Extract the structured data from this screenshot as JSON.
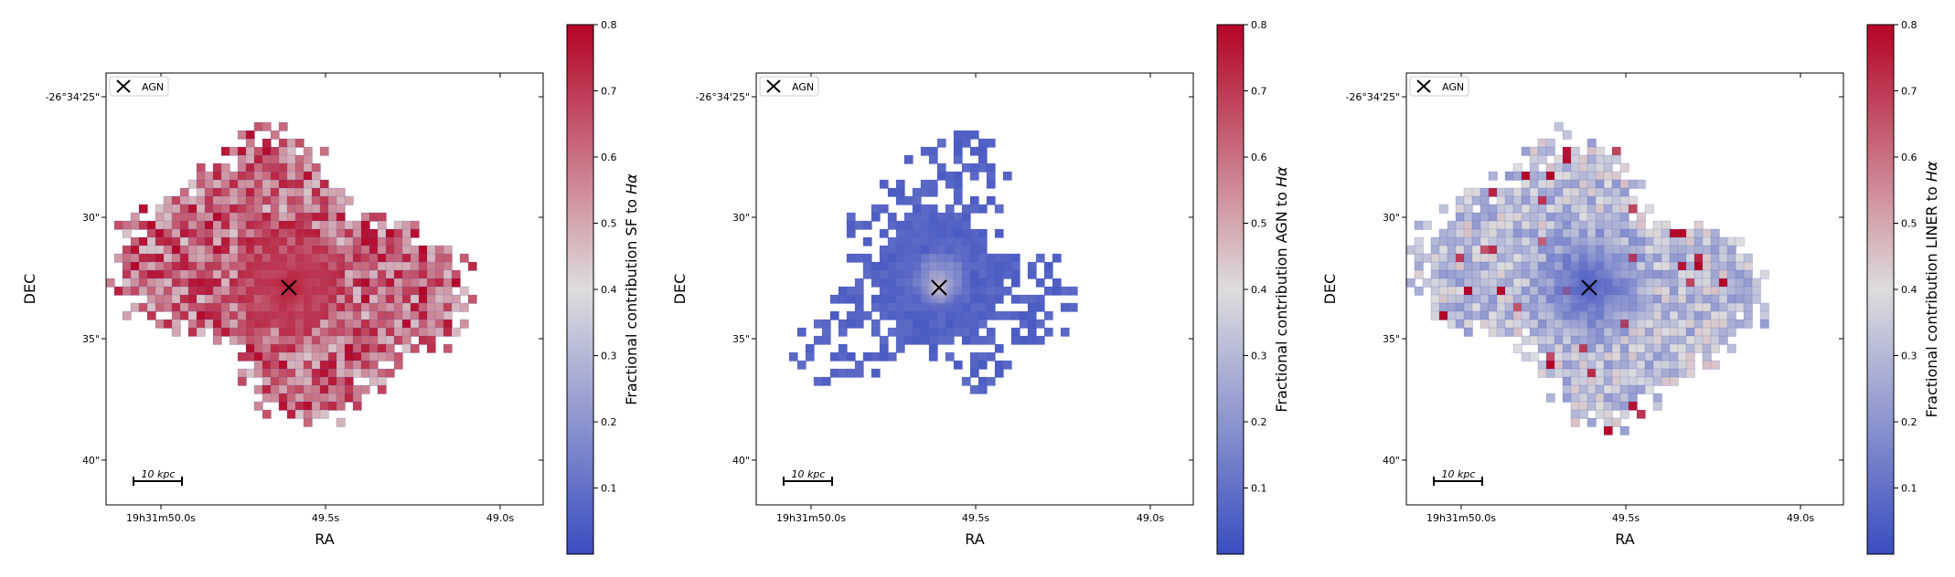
{
  "chart_data": [
    {
      "type": "heatmap",
      "title": "",
      "xlabel": "RA",
      "ylabel": "DEC",
      "xticks": [
        "19h31m50.0s",
        "49.5s",
        "49.0s"
      ],
      "yticks": [
        "-26°34'25\"",
        "30\"",
        "35\"",
        "40\""
      ],
      "legend": {
        "label": "AGN",
        "position": "top-left"
      },
      "scalebar_label": "10 kpc",
      "colorbar": {
        "label_prefix": "Fractional contribution SF to ",
        "label_symbol": "Hα",
        "ticks": [
          "0.1",
          "0.2",
          "0.3",
          "0.4",
          "0.5",
          "0.6",
          "0.7",
          "0.8"
        ],
        "range": [
          0.0,
          0.8
        ]
      },
      "cmap": "coolwarm",
      "colors": {
        "low": "#3b4cc0",
        "mid": "#dddddd",
        "high": "#b40426"
      },
      "agn_position": {
        "ra_offset_arcsec": 0,
        "dec_offset_arcsec": 0
      },
      "field_level": 0.62
    },
    {
      "type": "heatmap",
      "title": "",
      "xlabel": "RA",
      "ylabel": "DEC",
      "xticks": [
        "19h31m50.0s",
        "49.5s",
        "49.0s"
      ],
      "yticks": [
        "-26°34'25\"",
        "30\"",
        "35\"",
        "40\""
      ],
      "legend": {
        "label": "AGN",
        "position": "top-left"
      },
      "scalebar_label": "10 kpc",
      "colorbar": {
        "label_prefix": "Fractional contribution AGN to ",
        "label_symbol": "Hα",
        "ticks": [
          "0.1",
          "0.2",
          "0.3",
          "0.4",
          "0.5",
          "0.6",
          "0.7",
          "0.8"
        ],
        "range": [
          0.0,
          0.8
        ]
      },
      "cmap": "coolwarm",
      "colors": {
        "low": "#3b4cc0",
        "mid": "#dddddd",
        "high": "#b40426"
      },
      "field_level": 0.04
    },
    {
      "type": "heatmap",
      "title": "",
      "xlabel": "RA",
      "ylabel": "DEC",
      "xticks": [
        "19h31m50.0s",
        "49.5s",
        "49.0s"
      ],
      "yticks": [
        "-26°34'25\"",
        "30\"",
        "35\"",
        "40\""
      ],
      "legend": {
        "label": "AGN",
        "position": "top-left"
      },
      "scalebar_label": "10 kpc",
      "colorbar": {
        "label_prefix": "Fractional contribution LINER to ",
        "label_symbol": "Hα",
        "ticks": [
          "0.1",
          "0.2",
          "0.3",
          "0.4",
          "0.5",
          "0.6",
          "0.7",
          "0.8"
        ],
        "range": [
          0.0,
          0.8
        ]
      },
      "cmap": "coolwarm",
      "colors": {
        "low": "#3b4cc0",
        "mid": "#dddddd",
        "high": "#b40426"
      },
      "field_level": 0.33
    }
  ]
}
